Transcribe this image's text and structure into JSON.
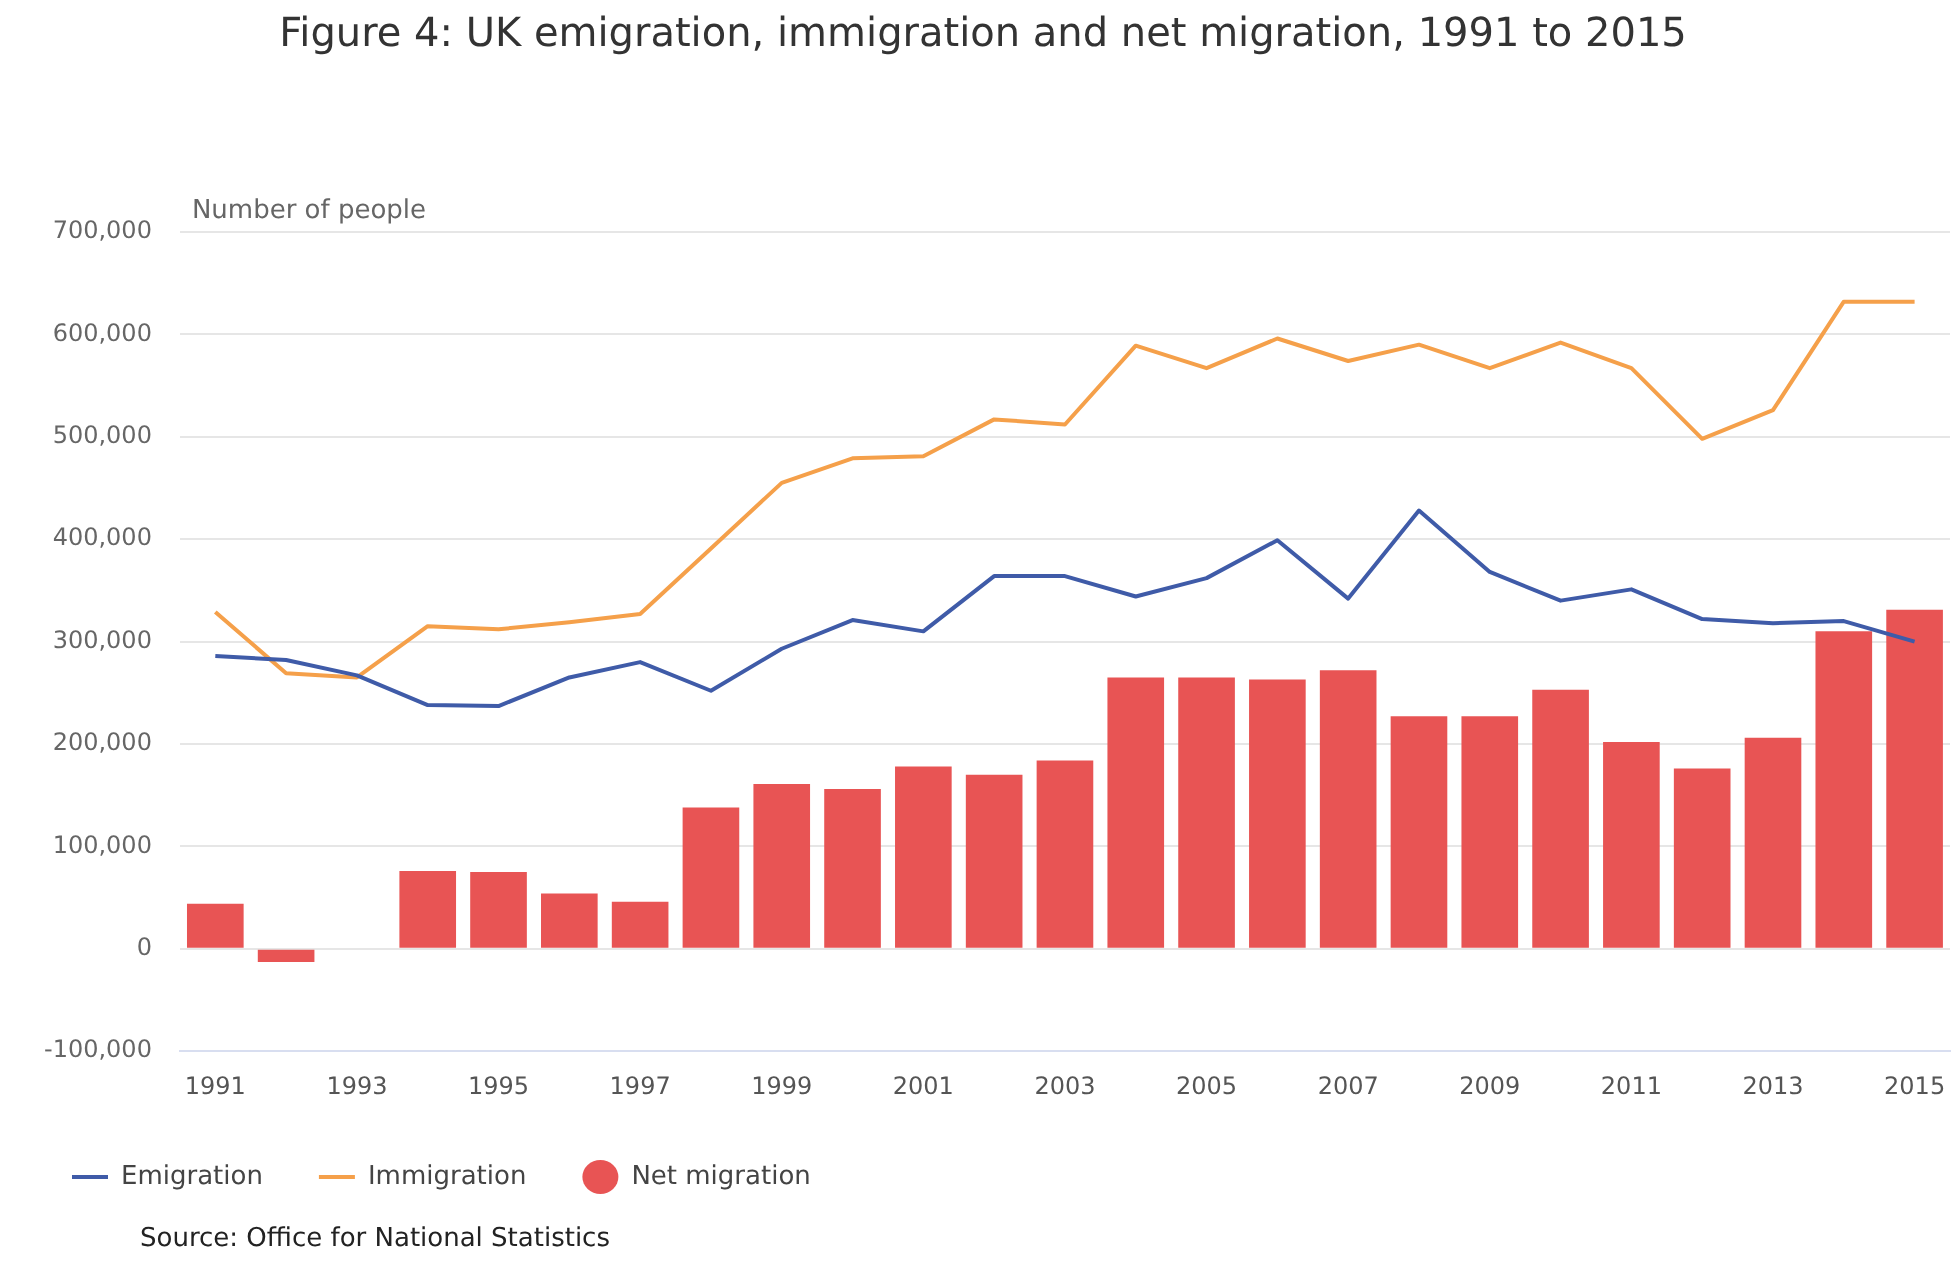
{
  "chart_data": {
    "type": "bar",
    "title": "Figure 4: UK emigration, immigration and net migration, 1991 to 2015",
    "ylabel": "Number of people",
    "categories": [
      "1991",
      null,
      "1993",
      null,
      "1995",
      null,
      "1997",
      null,
      "1999",
      null,
      "2001",
      null,
      "2003",
      null,
      "2005",
      null,
      "2007",
      null,
      "2009",
      null,
      "2011",
      null,
      "2013",
      null,
      "2015"
    ],
    "series": [
      {
        "name": "Emigration",
        "type": "line",
        "color": "#3f5ba8",
        "values": [
          286000,
          282000,
          267000,
          238000,
          237000,
          265000,
          280000,
          252000,
          293000,
          321000,
          310000,
          364000,
          364000,
          344000,
          362000,
          399000,
          342000,
          428000,
          368000,
          340000,
          351000,
          322000,
          318000,
          320000,
          300000
        ]
      },
      {
        "name": "Immigration",
        "type": "line",
        "color": "#f5a04a",
        "values": [
          329000,
          269000,
          265000,
          315000,
          312000,
          319000,
          327000,
          391000,
          455000,
          479000,
          481000,
          517000,
          512000,
          589000,
          567000,
          596000,
          574000,
          590000,
          567000,
          592000,
          567000,
          498000,
          526000,
          632000,
          632000
        ]
      },
      {
        "name": "Net migration",
        "color": "#e85454",
        "values": [
          44000,
          -13000,
          0,
          76000,
          75000,
          54000,
          46000,
          138000,
          161000,
          156000,
          178000,
          170000,
          184000,
          265000,
          265000,
          263000,
          272000,
          227000,
          227000,
          253000,
          202000,
          176000,
          206000,
          310000,
          331000
        ]
      }
    ],
    "ylim": [
      -100000,
      700000
    ],
    "yticks": [
      {
        "value": -100000,
        "label": "-100,000"
      },
      {
        "value": 0,
        "label": "0"
      },
      {
        "value": 100000,
        "label": "100,000"
      },
      {
        "value": 200000,
        "label": "200,000"
      },
      {
        "value": 300000,
        "label": "300,000"
      },
      {
        "value": 400000,
        "label": "400,000"
      },
      {
        "value": 500000,
        "label": "500,000"
      },
      {
        "value": 600000,
        "label": "600,000"
      },
      {
        "value": 700000,
        "label": "700,000"
      }
    ],
    "grid": "y",
    "legend": "bottom left",
    "marker": "none",
    "line_style": "solid",
    "annotations": [
      "Source: Office for National Statistics"
    ]
  }
}
